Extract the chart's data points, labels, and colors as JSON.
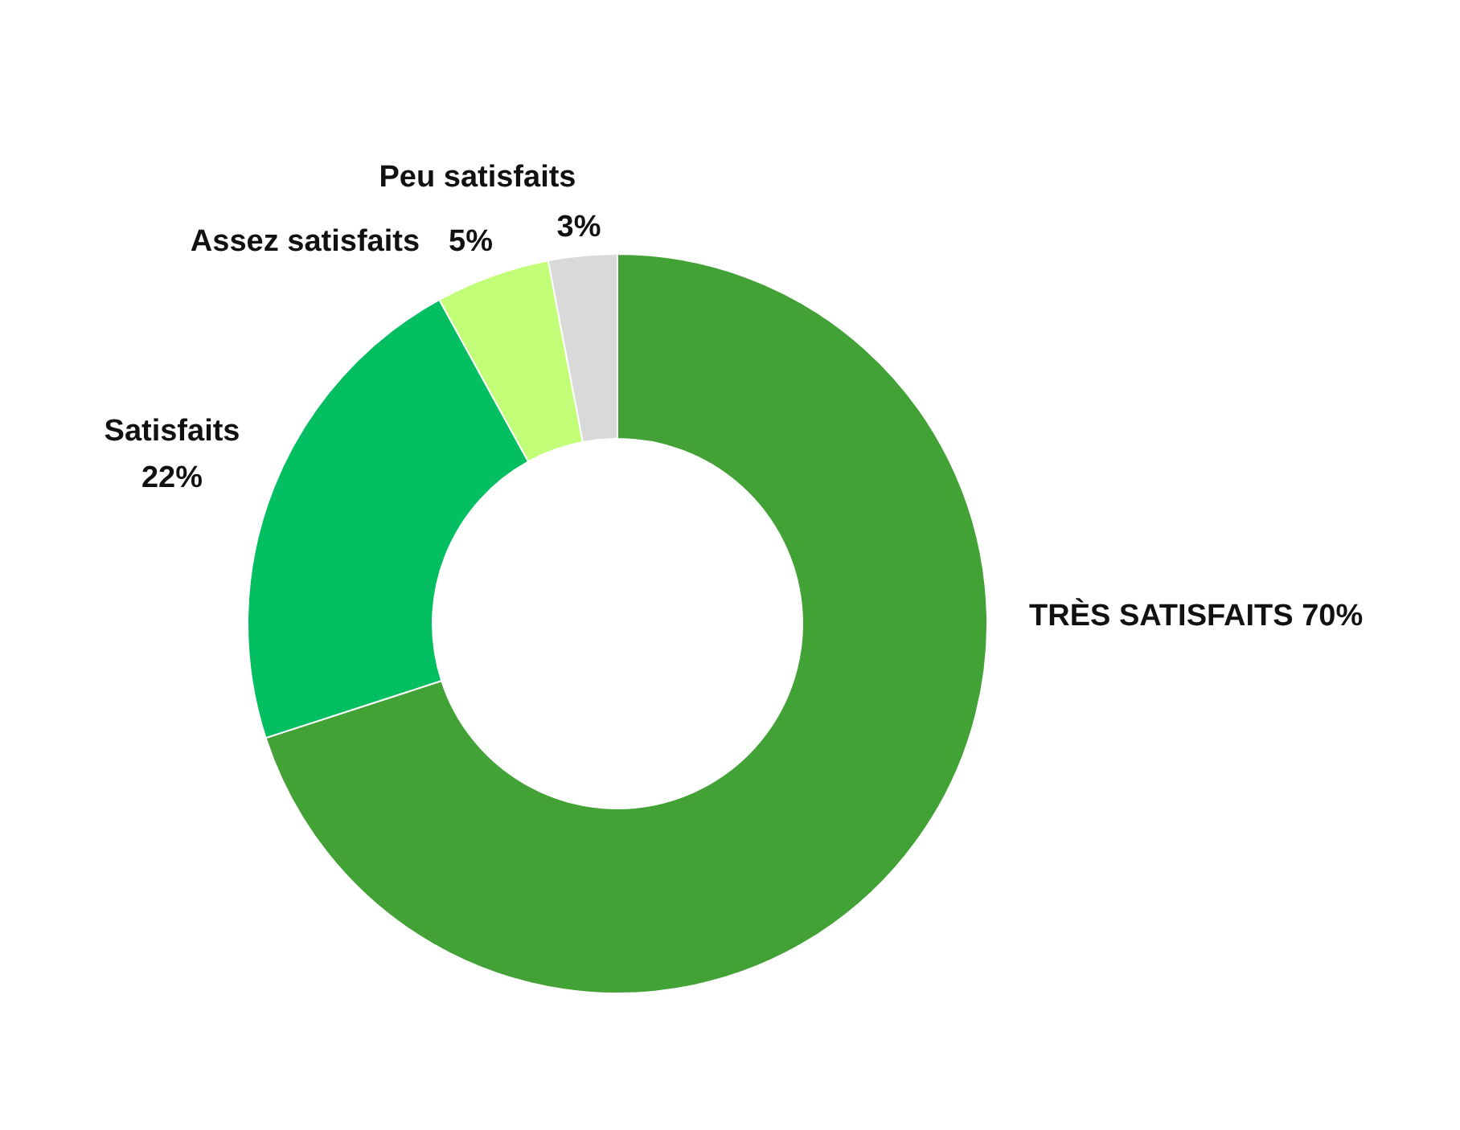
{
  "chart_data": {
    "type": "donut",
    "categories": [
      "TRÈS SATISFAITS",
      "Satisfaits",
      "Assez satisfaits",
      "Peu satisfaits"
    ],
    "values": [
      70,
      22,
      5,
      3
    ],
    "colors": [
      "#43a236",
      "#04bf62",
      "#c3fe78",
      "#d9d9d9"
    ],
    "value_labels": [
      "70%",
      "22%",
      "5%",
      "3%"
    ]
  }
}
